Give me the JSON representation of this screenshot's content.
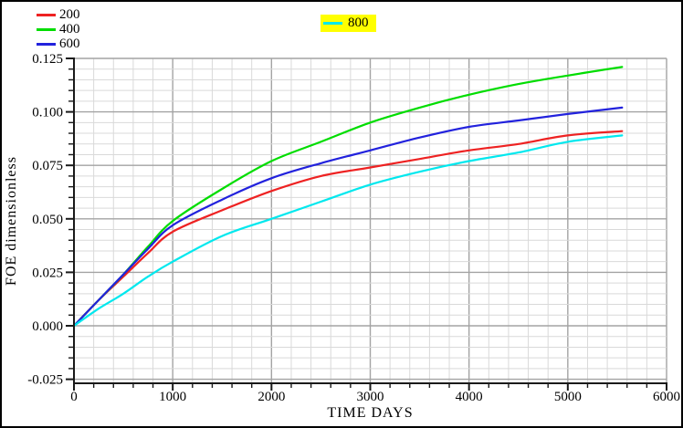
{
  "figure": {
    "background": "#ffffff",
    "border_color": "#000000"
  },
  "legend": {
    "items": [
      {
        "label": "200",
        "highlighted": false
      },
      {
        "label": "400",
        "highlighted": false
      },
      {
        "label": "600",
        "highlighted": false
      },
      {
        "label": "800",
        "highlighted": true
      }
    ],
    "highlight_color": "#ffff00"
  },
  "chart_data": {
    "type": "line",
    "title": "",
    "xlabel": "TIME DAYS",
    "ylabel": "FOE dimensionless",
    "xlim": [
      0,
      6000
    ],
    "ylim": [
      -0.025,
      0.125
    ],
    "x_major_step": 1000,
    "x_minor_step": 200,
    "y_major_step": 0.025,
    "y_minor_step": 0.005,
    "grid": "major and minor gridlines on",
    "legend_position": "items 200/400/600 stacked top-left; item 800 highlighted yellow at top-center",
    "x": [
      0,
      250,
      500,
      750,
      1000,
      1500,
      2000,
      2500,
      3000,
      3500,
      4000,
      4500,
      5000,
      5550
    ],
    "series": [
      {
        "name": "200",
        "color": "#ee2222",
        "values": [
          0.0,
          0.012,
          0.023,
          0.034,
          0.044,
          0.054,
          0.063,
          0.07,
          0.074,
          0.078,
          0.082,
          0.085,
          0.089,
          0.091
        ]
      },
      {
        "name": "400",
        "color": "#00dd00",
        "values": [
          0.0,
          0.012,
          0.024,
          0.037,
          0.049,
          0.064,
          0.077,
          0.086,
          0.095,
          0.102,
          0.108,
          0.113,
          0.117,
          0.121
        ]
      },
      {
        "name": "600",
        "color": "#2222dd",
        "values": [
          0.0,
          0.012,
          0.024,
          0.036,
          0.047,
          0.059,
          0.069,
          0.076,
          0.082,
          0.088,
          0.093,
          0.096,
          0.099,
          0.102
        ]
      },
      {
        "name": "800",
        "color": "#00e8ee",
        "values": [
          0.0,
          0.008,
          0.015,
          0.023,
          0.03,
          0.042,
          0.05,
          0.058,
          0.066,
          0.072,
          0.077,
          0.081,
          0.086,
          0.089
        ]
      }
    ],
    "colors": {
      "major_grid": "#a3a3a3",
      "minor_grid": "#d9d9d9",
      "axis": "#1a1a1a",
      "text": "#000000"
    }
  }
}
